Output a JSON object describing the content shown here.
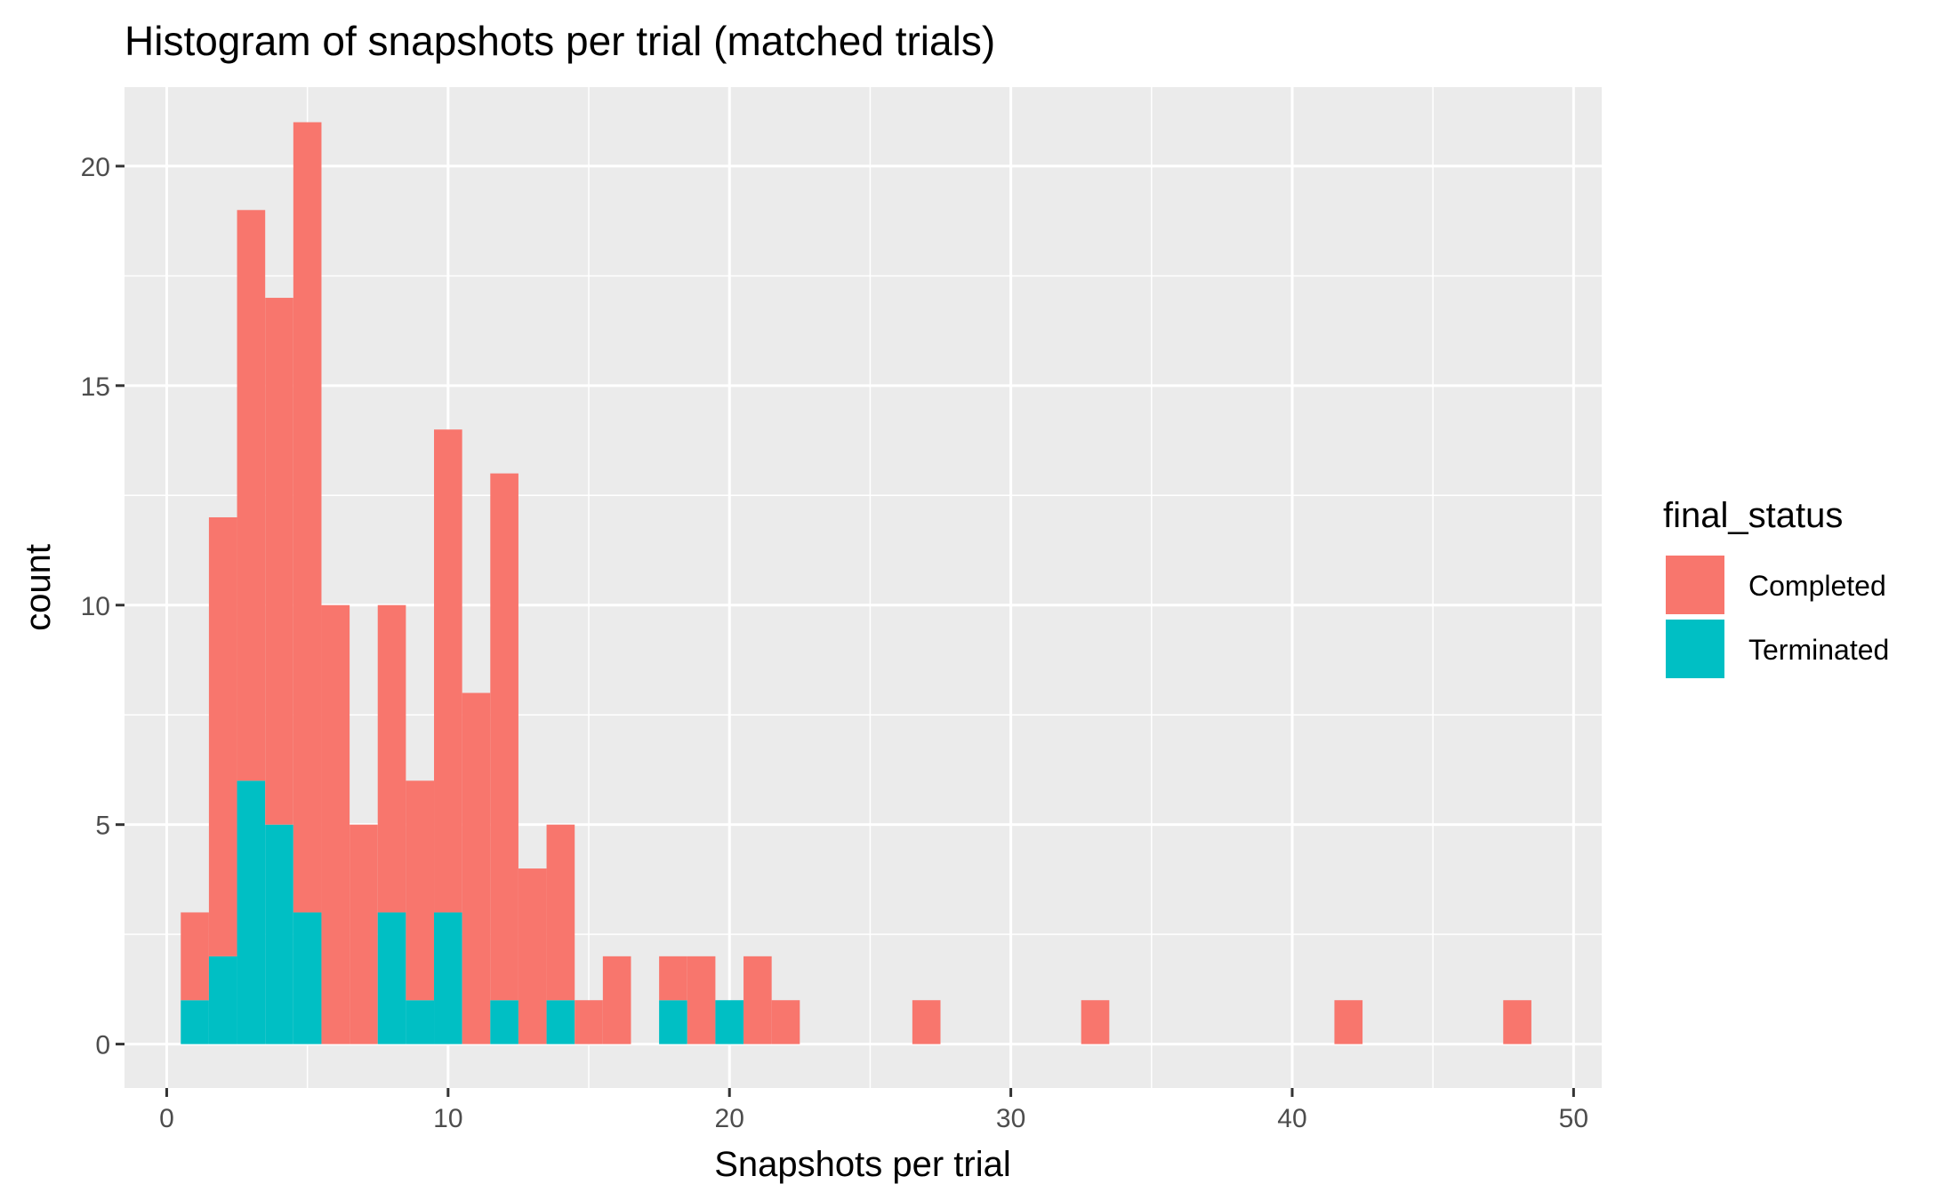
{
  "chart_data": {
    "type": "bar",
    "stacked": true,
    "title": "Histogram of snapshots per trial (matched trials)",
    "xlabel": "Snapshots per trial",
    "ylabel": "count",
    "xlim": [
      -1.5,
      51
    ],
    "ylim": [
      -1,
      21.8
    ],
    "x_ticks": [
      0,
      10,
      20,
      30,
      40,
      50
    ],
    "y_ticks": [
      0,
      5,
      10,
      15,
      20
    ],
    "bin_width": 1,
    "grid": true,
    "legend": {
      "title": "final_status",
      "placement": "right"
    },
    "bins": [
      1,
      2,
      3,
      4,
      5,
      6,
      7,
      8,
      9,
      10,
      11,
      12,
      13,
      14,
      15,
      16,
      18,
      19,
      20,
      21,
      22,
      27,
      33,
      42,
      48
    ],
    "series": [
      {
        "name": "Terminated",
        "color": "#00BFC4",
        "values": [
          1,
          2,
          6,
          5,
          3,
          0,
          0,
          3,
          1,
          3,
          0,
          1,
          0,
          1,
          0,
          0,
          1,
          0,
          1,
          0,
          0,
          0,
          0,
          0,
          0
        ]
      },
      {
        "name": "Completed",
        "color": "#F8766D",
        "values": [
          2,
          10,
          13,
          12,
          18,
          10,
          5,
          7,
          5,
          11,
          8,
          12,
          4,
          4,
          1,
          2,
          1,
          2,
          0,
          2,
          1,
          1,
          1,
          1,
          1
        ]
      }
    ]
  }
}
